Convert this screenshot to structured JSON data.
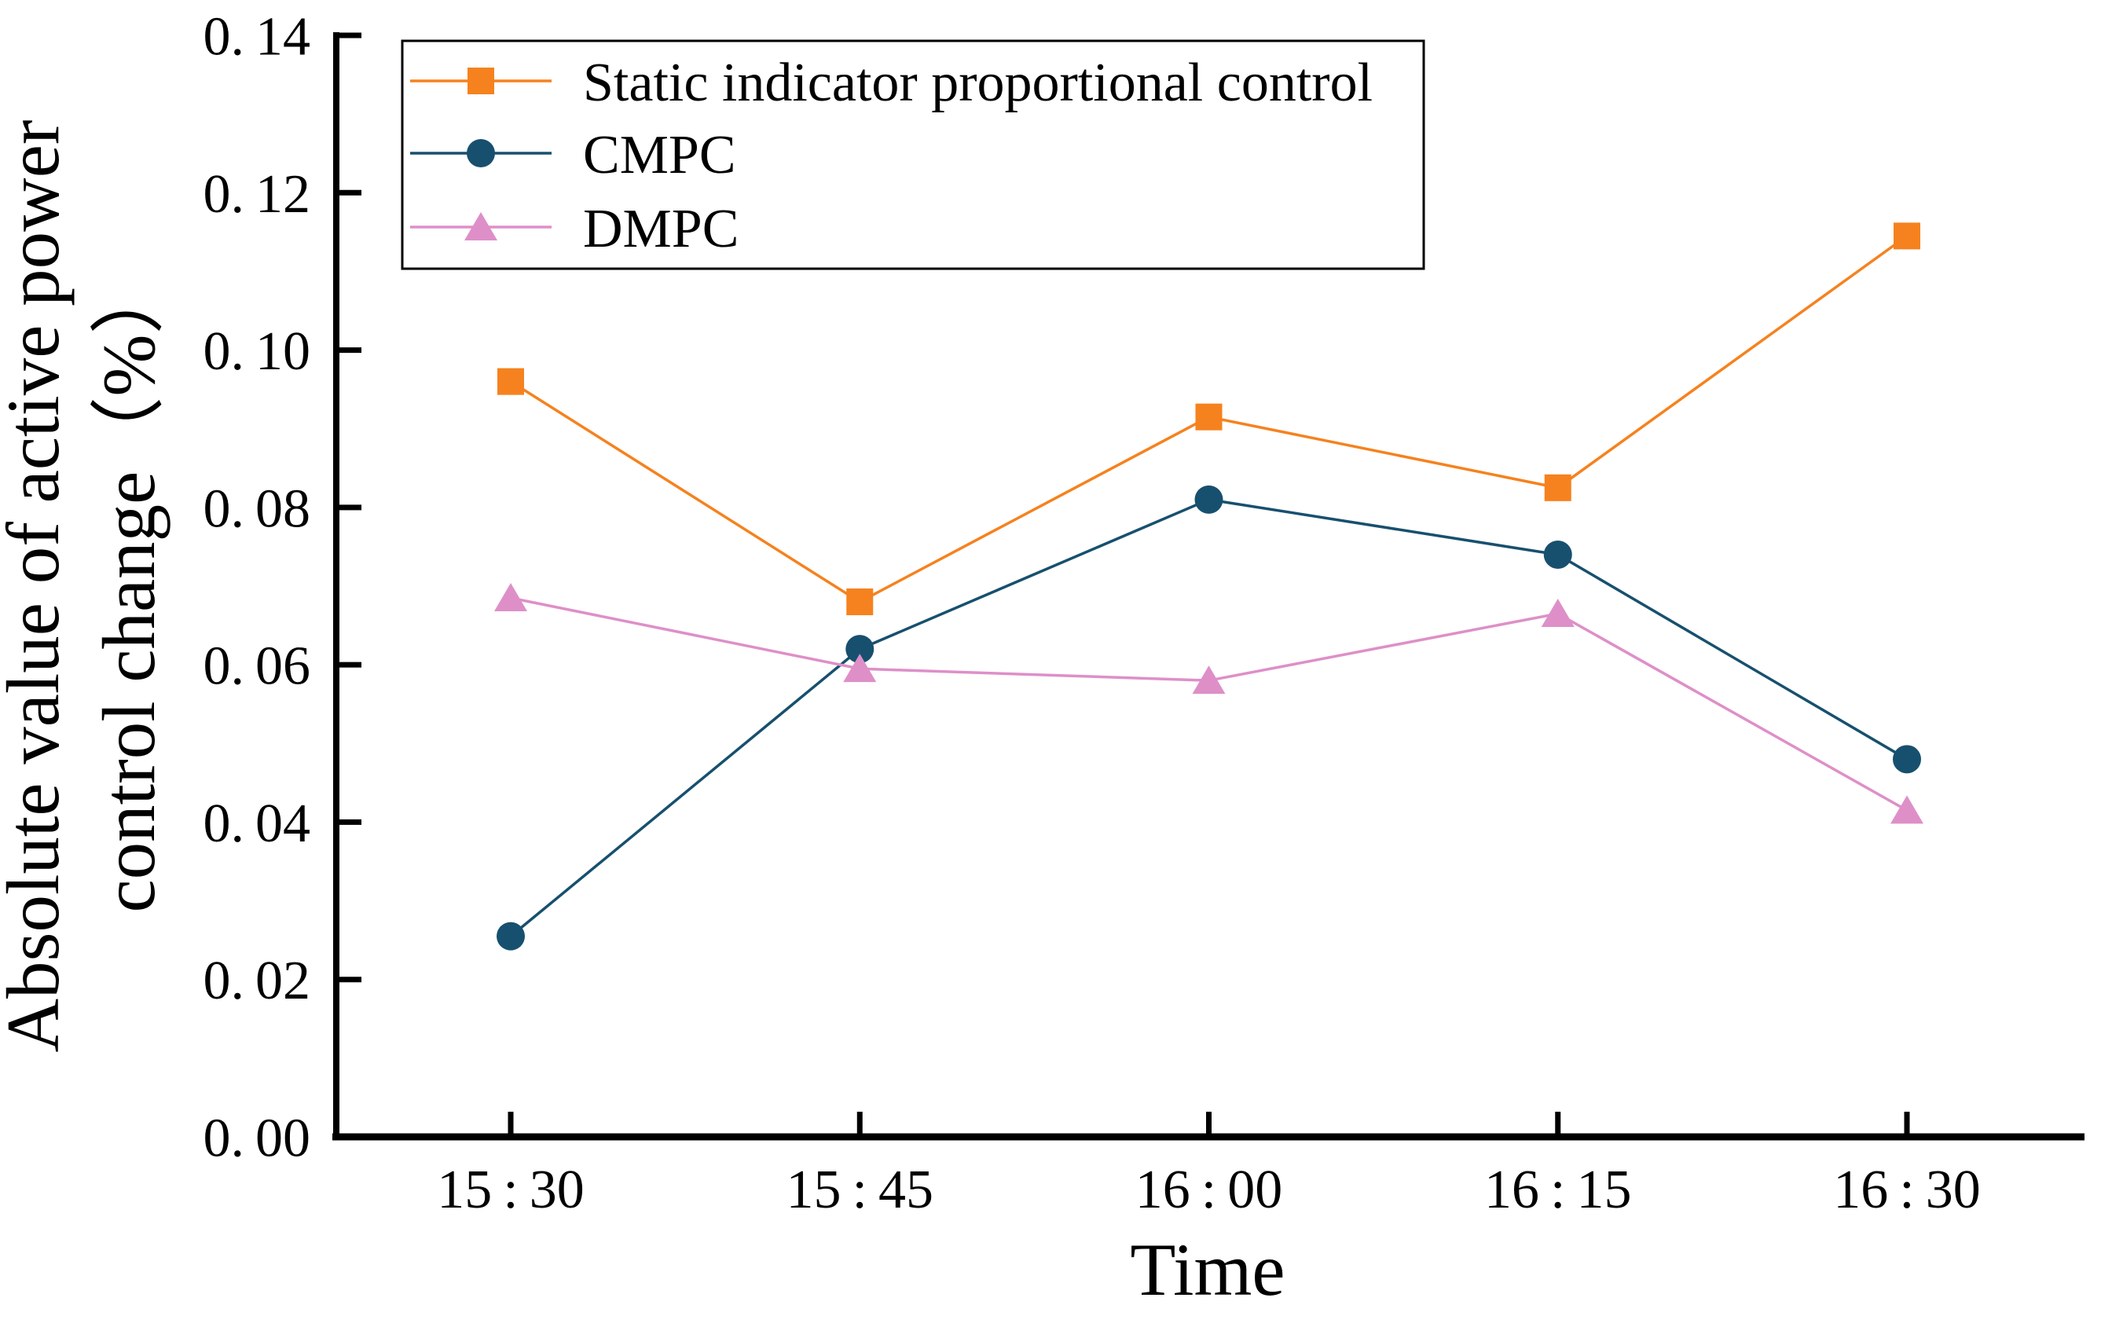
{
  "chart_data": {
    "type": "line",
    "title": "",
    "x_categories": [
      "15:30",
      "15:45",
      "16:00",
      "16:15",
      "16:30"
    ],
    "xlabel": "Time",
    "ylabel_line1": "Absolute value of active power",
    "ylabel_line2": "control change（%）",
    "ylim": [
      0.0,
      0.14
    ],
    "yticks": [
      0.0,
      0.02,
      0.04,
      0.06,
      0.08,
      0.1,
      0.12,
      0.14
    ],
    "ytick_labels": [
      "0.00",
      "0.02",
      "0.04",
      "0.06",
      "0.08",
      "0.10",
      "0.12",
      "0.14"
    ],
    "grid": false,
    "legend_position": "top-left",
    "axis_color": "#000000",
    "background_color": "#ffffff",
    "series": [
      {
        "name": "Static indicator proportional control",
        "marker": "square",
        "color": "#F5821E",
        "values": [
          0.096,
          0.068,
          0.0915,
          0.0825,
          0.1145
        ]
      },
      {
        "name": "CMPC",
        "marker": "circle",
        "color": "#17506E",
        "values": [
          0.0255,
          0.062,
          0.081,
          0.074,
          0.048
        ]
      },
      {
        "name": "DMPC",
        "marker": "triangle",
        "color": "#DE8FC8",
        "values": [
          0.0685,
          0.0595,
          0.058,
          0.0665,
          0.0415
        ]
      }
    ]
  }
}
